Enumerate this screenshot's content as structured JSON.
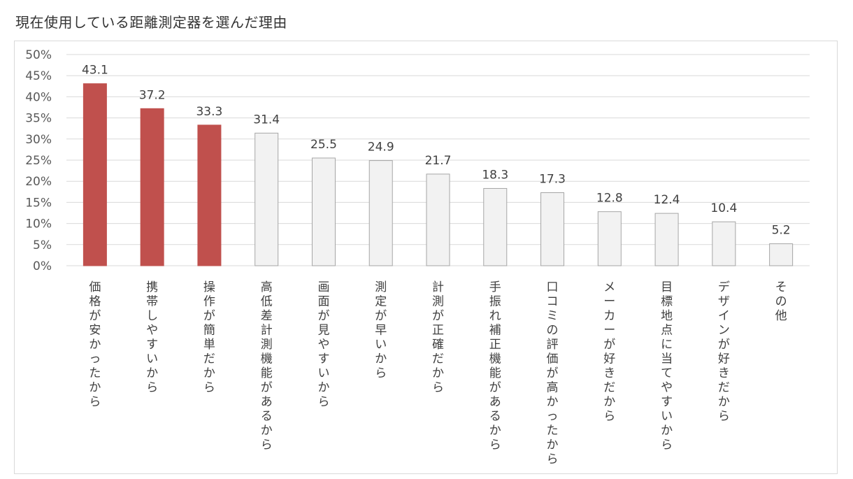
{
  "title": "現在使用している距離測定器を選んだ理由",
  "colors": {
    "highlight": "#c0504d",
    "default": "#f2f2f2",
    "default_stroke": "#a6a6a6",
    "grid": "#d9d9d9"
  },
  "chart_data": {
    "type": "bar",
    "title": "現在使用している距離測定器を選んだ理由",
    "xlabel": "",
    "ylabel": "",
    "ylim": [
      0,
      50
    ],
    "ytick_step": 5,
    "ytick_format": "%",
    "grid": true,
    "legend": "none",
    "categories": [
      "価格が安かったから",
      "携帯しやすいから",
      "操作が簡単だから",
      "高低差計測機能があるから",
      "画面が見やすいから",
      "測定が早いから",
      "計測が正確だから",
      "手振れ補正機能があるから",
      "口コミの評価が高かったから",
      "メーカーが好きだから",
      "目標地点に当てやすいから",
      "デザインが好きだから",
      "その他"
    ],
    "values": [
      43.1,
      37.2,
      33.3,
      31.4,
      25.5,
      24.9,
      21.7,
      18.3,
      17.3,
      12.8,
      12.4,
      10.4,
      5.2
    ],
    "highlighted_count": 3
  }
}
